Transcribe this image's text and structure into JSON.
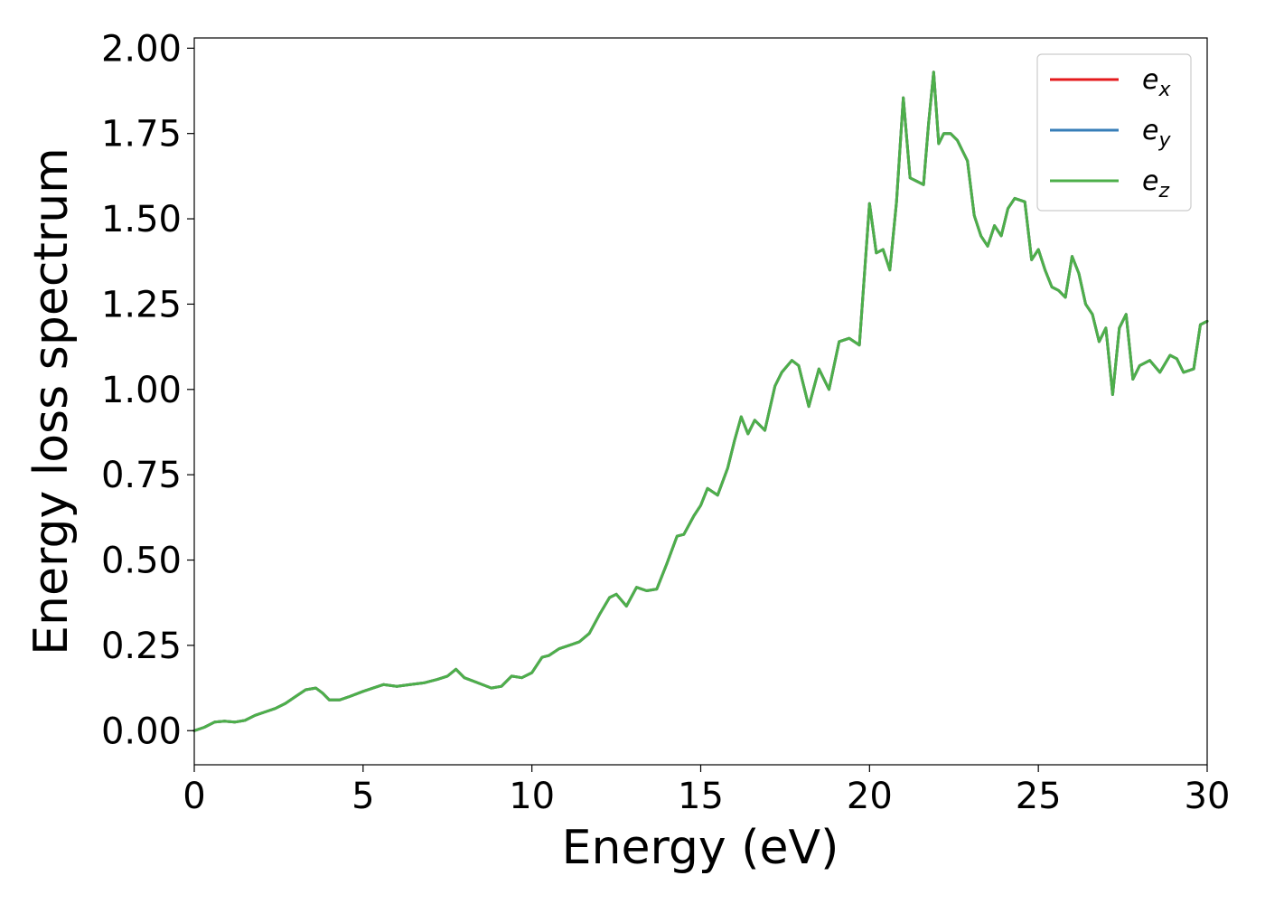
{
  "chart_data": {
    "type": "line",
    "xlabel": "Energy (eV)",
    "ylabel": "Energy loss spectrum",
    "xlim": [
      0,
      30
    ],
    "ylim": [
      -0.1,
      2.03
    ],
    "x_ticks": [
      "0",
      "5",
      "10",
      "15",
      "20",
      "25",
      "30"
    ],
    "y_ticks": [
      "0.00",
      "0.25",
      "0.50",
      "0.75",
      "1.00",
      "1.25",
      "1.50",
      "1.75",
      "2.00"
    ],
    "x_tick_values": [
      0,
      5,
      10,
      15,
      20,
      25,
      30
    ],
    "y_tick_values": [
      0,
      0.25,
      0.5,
      0.75,
      1.0,
      1.25,
      1.5,
      1.75,
      2.0
    ],
    "grid": false,
    "legend_position": "top-right",
    "x": [
      0,
      0.3,
      0.6,
      0.9,
      1.2,
      1.5,
      1.8,
      2.1,
      2.4,
      2.7,
      3.0,
      3.3,
      3.6,
      3.8,
      4.0,
      4.3,
      4.6,
      5.0,
      5.3,
      5.6,
      6.0,
      6.4,
      6.8,
      7.2,
      7.5,
      7.75,
      8.0,
      8.4,
      8.8,
      9.1,
      9.4,
      9.7,
      10.0,
      10.3,
      10.5,
      10.8,
      11.1,
      11.4,
      11.7,
      12.0,
      12.3,
      12.5,
      12.8,
      13.1,
      13.4,
      13.7,
      14.0,
      14.3,
      14.5,
      14.8,
      15.0,
      15.2,
      15.5,
      15.8,
      16.0,
      16.2,
      16.4,
      16.6,
      16.9,
      17.2,
      17.4,
      17.7,
      17.9,
      18.2,
      18.5,
      18.8,
      19.1,
      19.4,
      19.7,
      20.0,
      20.2,
      20.4,
      20.6,
      20.8,
      21.0,
      21.2,
      21.4,
      21.6,
      21.75,
      21.9,
      22.05,
      22.2,
      22.4,
      22.6,
      22.75,
      22.9,
      23.1,
      23.3,
      23.5,
      23.7,
      23.9,
      24.1,
      24.3,
      24.6,
      24.8,
      25.0,
      25.2,
      25.4,
      25.6,
      25.8,
      26.0,
      26.2,
      26.4,
      26.6,
      26.8,
      27.0,
      27.2,
      27.4,
      27.6,
      27.8,
      28.0,
      28.3,
      28.6,
      28.9,
      29.1,
      29.3,
      29.6,
      29.8,
      30.0
    ],
    "series": [
      {
        "name": "e_x",
        "color": "#e41a1c",
        "values": [
          0.0,
          0.01,
          0.025,
          0.028,
          0.025,
          0.03,
          0.045,
          0.055,
          0.065,
          0.08,
          0.1,
          0.12,
          0.125,
          0.11,
          0.09,
          0.09,
          0.1,
          0.115,
          0.125,
          0.135,
          0.13,
          0.135,
          0.14,
          0.15,
          0.16,
          0.18,
          0.155,
          0.14,
          0.125,
          0.13,
          0.16,
          0.155,
          0.17,
          0.215,
          0.22,
          0.24,
          0.25,
          0.26,
          0.285,
          0.34,
          0.39,
          0.4,
          0.365,
          0.42,
          0.41,
          0.415,
          0.49,
          0.57,
          0.575,
          0.63,
          0.66,
          0.71,
          0.69,
          0.77,
          0.85,
          0.92,
          0.87,
          0.91,
          0.88,
          1.01,
          1.05,
          1.085,
          1.07,
          0.95,
          1.06,
          1.0,
          1.14,
          1.15,
          1.13,
          1.545,
          1.4,
          1.41,
          1.35,
          1.55,
          1.855,
          1.62,
          1.61,
          1.6,
          1.78,
          1.93,
          1.72,
          1.75,
          1.75,
          1.73,
          1.7,
          1.67,
          1.51,
          1.45,
          1.42,
          1.48,
          1.45,
          1.53,
          1.56,
          1.55,
          1.38,
          1.41,
          1.35,
          1.3,
          1.29,
          1.27,
          1.39,
          1.34,
          1.25,
          1.22,
          1.14,
          1.18,
          0.985,
          1.18,
          1.22,
          1.03,
          1.07,
          1.085,
          1.05,
          1.1,
          1.09,
          1.05,
          1.06,
          1.19,
          1.2
        ]
      },
      {
        "name": "e_y",
        "color": "#377eb8",
        "values": [
          0.0,
          0.01,
          0.025,
          0.028,
          0.025,
          0.03,
          0.045,
          0.055,
          0.065,
          0.08,
          0.1,
          0.12,
          0.125,
          0.11,
          0.09,
          0.09,
          0.1,
          0.115,
          0.125,
          0.135,
          0.13,
          0.135,
          0.14,
          0.15,
          0.16,
          0.18,
          0.155,
          0.14,
          0.125,
          0.13,
          0.16,
          0.155,
          0.17,
          0.215,
          0.22,
          0.24,
          0.25,
          0.26,
          0.285,
          0.34,
          0.39,
          0.4,
          0.365,
          0.42,
          0.41,
          0.415,
          0.49,
          0.57,
          0.575,
          0.63,
          0.66,
          0.71,
          0.69,
          0.77,
          0.85,
          0.92,
          0.87,
          0.91,
          0.88,
          1.01,
          1.05,
          1.085,
          1.07,
          0.95,
          1.06,
          1.0,
          1.14,
          1.15,
          1.13,
          1.545,
          1.4,
          1.41,
          1.35,
          1.55,
          1.855,
          1.62,
          1.61,
          1.6,
          1.78,
          1.93,
          1.72,
          1.75,
          1.75,
          1.73,
          1.7,
          1.67,
          1.51,
          1.45,
          1.42,
          1.48,
          1.45,
          1.53,
          1.56,
          1.55,
          1.38,
          1.41,
          1.35,
          1.3,
          1.29,
          1.27,
          1.39,
          1.34,
          1.25,
          1.22,
          1.14,
          1.18,
          0.985,
          1.18,
          1.22,
          1.03,
          1.07,
          1.085,
          1.05,
          1.1,
          1.09,
          1.05,
          1.06,
          1.19,
          1.2
        ]
      },
      {
        "name": "e_z",
        "color": "#4daf4a",
        "values": [
          0.0,
          0.01,
          0.025,
          0.028,
          0.025,
          0.03,
          0.045,
          0.055,
          0.065,
          0.08,
          0.1,
          0.12,
          0.125,
          0.11,
          0.09,
          0.09,
          0.1,
          0.115,
          0.125,
          0.135,
          0.13,
          0.135,
          0.14,
          0.15,
          0.16,
          0.18,
          0.155,
          0.14,
          0.125,
          0.13,
          0.16,
          0.155,
          0.17,
          0.215,
          0.22,
          0.24,
          0.25,
          0.26,
          0.285,
          0.34,
          0.39,
          0.4,
          0.365,
          0.42,
          0.41,
          0.415,
          0.49,
          0.57,
          0.575,
          0.63,
          0.66,
          0.71,
          0.69,
          0.77,
          0.85,
          0.92,
          0.87,
          0.91,
          0.88,
          1.01,
          1.05,
          1.085,
          1.07,
          0.95,
          1.06,
          1.0,
          1.14,
          1.15,
          1.13,
          1.545,
          1.4,
          1.41,
          1.35,
          1.55,
          1.855,
          1.62,
          1.61,
          1.6,
          1.78,
          1.93,
          1.72,
          1.75,
          1.75,
          1.73,
          1.7,
          1.67,
          1.51,
          1.45,
          1.42,
          1.48,
          1.45,
          1.53,
          1.56,
          1.55,
          1.38,
          1.41,
          1.35,
          1.3,
          1.29,
          1.27,
          1.39,
          1.34,
          1.25,
          1.22,
          1.14,
          1.18,
          0.985,
          1.18,
          1.22,
          1.03,
          1.07,
          1.085,
          1.05,
          1.1,
          1.09,
          1.05,
          1.06,
          1.19,
          1.2
        ]
      }
    ],
    "legend": [
      {
        "base": "e",
        "sub": "x"
      },
      {
        "base": "e",
        "sub": "y"
      },
      {
        "base": "e",
        "sub": "z"
      }
    ]
  }
}
